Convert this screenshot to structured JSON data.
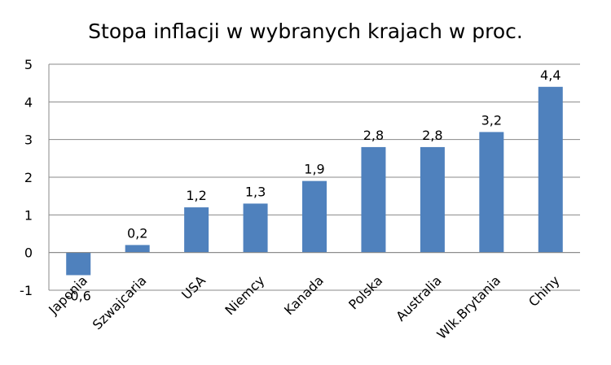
{
  "chart_data": {
    "type": "bar",
    "title": "Stopa inflacji w wybranych krajach w proc.",
    "categories": [
      "Japonia",
      "Szwajcaria",
      "USA",
      "Niemcy",
      "Kanada",
      "Polska",
      "Australia",
      "Wlk.Brytania",
      "Chiny"
    ],
    "values": [
      -0.6,
      0.2,
      1.2,
      1.3,
      1.9,
      2.8,
      2.8,
      3.2,
      4.4
    ],
    "value_labels": [
      "-0,6",
      "0,2",
      "1,2",
      "1,3",
      "1,9",
      "2,8",
      "2,8",
      "3,2",
      "4,4"
    ],
    "ylim": [
      -1,
      5
    ],
    "yticks": [
      -1,
      0,
      1,
      2,
      3,
      4,
      5
    ],
    "ytick_labels": [
      "-1",
      "0",
      "1",
      "2",
      "3",
      "4",
      "5"
    ],
    "grid": true,
    "legend": "none",
    "bar_color": "#4F81BD",
    "grid_color": "#888888"
  }
}
